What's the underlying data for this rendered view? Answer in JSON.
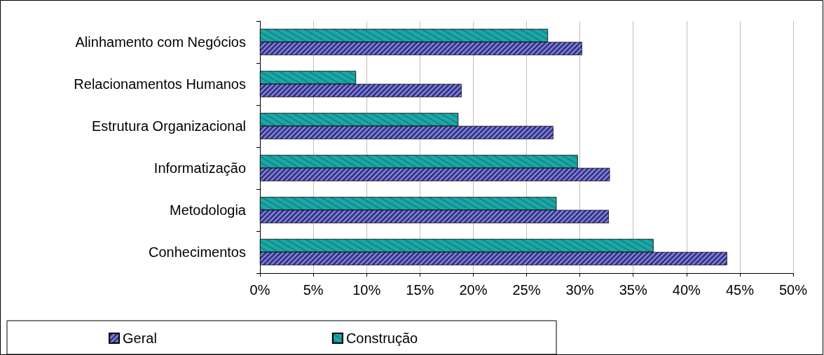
{
  "chart_data": {
    "type": "bar",
    "orientation": "horizontal",
    "categories": [
      "Alinhamento com Negócios",
      "Relacionamentos Humanos",
      "Estrutura Organizacional",
      "Informatização",
      "Metodologia",
      "Conhecimentos"
    ],
    "series": [
      {
        "name": "Geral",
        "color": "#333399",
        "values": [
          30.2,
          18.9,
          27.5,
          32.8,
          32.7,
          43.8
        ]
      },
      {
        "name": "Construção",
        "color": "#1aa8a8",
        "values": [
          27.0,
          9.0,
          18.6,
          29.8,
          27.8,
          36.9
        ]
      }
    ],
    "xlim": [
      0,
      50
    ],
    "xticks": [
      {
        "value": 0,
        "label": "0%"
      },
      {
        "value": 5,
        "label": "5%"
      },
      {
        "value": 10,
        "label": "10%"
      },
      {
        "value": 15,
        "label": "15%"
      },
      {
        "value": 20,
        "label": "20%"
      },
      {
        "value": 25,
        "label": "25%"
      },
      {
        "value": 30,
        "label": "30%"
      },
      {
        "value": 35,
        "label": "35%"
      },
      {
        "value": 40,
        "label": "40%"
      },
      {
        "value": 45,
        "label": "45%"
      },
      {
        "value": 50,
        "label": "50%"
      }
    ],
    "grid": "x",
    "legend": "bottom left"
  }
}
